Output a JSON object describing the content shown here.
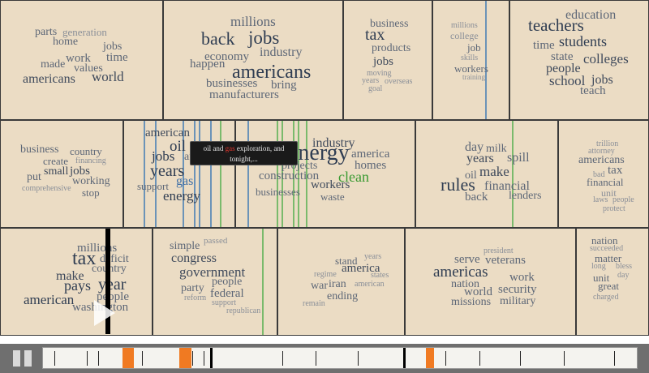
{
  "colors": {
    "cell_bg": "#ebdcc4",
    "word_dark": "#2f3d52",
    "word_mid": "#5d6777",
    "word_light": "#8a8f98",
    "word_green": "#3a9a32",
    "word_blue": "#3f6fa6",
    "line_blue": "#6b93b8",
    "line_green": "#7aba6c",
    "marker": "#f07a22"
  },
  "cells": [
    {
      "words": [
        "parts",
        "generation",
        "home",
        "jobs",
        "time",
        "work",
        "made",
        "values",
        "americans",
        "world"
      ]
    },
    {
      "words": [
        "millions",
        "back",
        "jobs",
        "industry",
        "economy",
        "happen",
        "americans",
        "businesses",
        "bring",
        "manufacturers"
      ]
    },
    {
      "words": [
        "business",
        "tax",
        "products",
        "jobs",
        "moving",
        "years",
        "overseas",
        "goal"
      ]
    },
    {
      "words": [
        "millions",
        "college",
        "job",
        "skills",
        "workers",
        "training"
      ]
    },
    {
      "words": [
        "education",
        "teachers",
        "time",
        "students",
        "state",
        "colleges",
        "people",
        "school",
        "jobs",
        "teach"
      ]
    },
    {
      "words": [
        "business",
        "country",
        "create",
        "financing",
        "small",
        "jobs",
        "put",
        "working",
        "comprehensive",
        "stop"
      ]
    },
    {
      "words": [
        "american",
        "oil",
        "jobs",
        "america",
        "years",
        "gas",
        "support",
        "energy"
      ]
    },
    {
      "words": [
        "industry",
        "energy",
        "america",
        "projects",
        "homes",
        "construction",
        "clean",
        "workers",
        "businesses",
        "waste"
      ]
    },
    {
      "words": [
        "day",
        "milk",
        "years",
        "spill",
        "make",
        "oil",
        "rules",
        "financial",
        "back",
        "lenders"
      ]
    },
    {
      "words": [
        "trillion",
        "attorney",
        "americans",
        "tax",
        "bad",
        "financial",
        "unit",
        "laws",
        "people",
        "protect"
      ]
    },
    {
      "words": [
        "millions",
        "tax",
        "deficit",
        "country",
        "make",
        "pays",
        "year",
        "american",
        "people",
        "washington"
      ]
    },
    {
      "words": [
        "passed",
        "simple",
        "congress",
        "government",
        "people",
        "party",
        "federal",
        "reform",
        "support",
        "republican"
      ]
    },
    {
      "words": [
        "stand",
        "years",
        "america",
        "regime",
        "states",
        "war",
        "iran",
        "american",
        "ending",
        "remain"
      ]
    },
    {
      "words": [
        "president",
        "serve",
        "veterans",
        "americas",
        "work",
        "nation",
        "world",
        "security",
        "missions",
        "military"
      ]
    },
    {
      "words": [
        "nation",
        "succeeded",
        "matter",
        "long",
        "bless",
        "unit",
        "day",
        "great",
        "charged"
      ]
    }
  ],
  "tooltip": {
    "before": "oil and ",
    "highlight": "gas",
    "after": " exploration, and tonight,..."
  },
  "timeline": {
    "ticks": [
      66,
      106,
      120,
      174,
      236,
      250,
      347,
      388,
      440,
      496,
      548,
      590,
      640,
      694,
      756
    ],
    "major_ticks": [
      258,
      496,
      528
    ],
    "markers": [
      [
        150,
        14
      ],
      [
        220,
        15
      ],
      [
        524,
        10
      ]
    ],
    "playhead_fraction": 0.0
  }
}
